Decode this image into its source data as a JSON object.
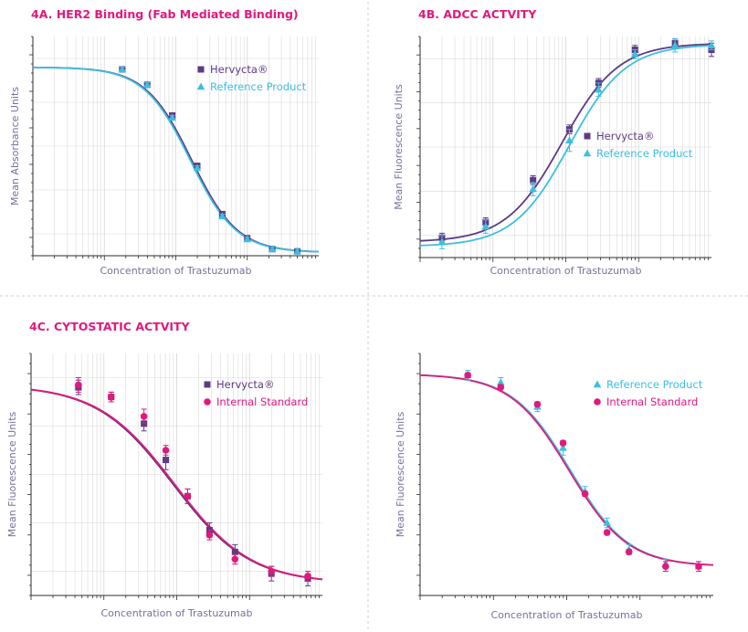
{
  "colors": {
    "title": "#e0197d",
    "hervycta": "#5e3a84",
    "reference": "#3bbfe0",
    "internal": "#e0197d",
    "axis": "#2c2c2c",
    "axis_title": "#7a6f9a",
    "grid": "#d8d8d8",
    "divider": "#cfcfcf"
  },
  "chart_data": [
    {
      "id": "4a",
      "type": "line",
      "title": "4A. HER2 Binding (Fab Mediated Binding)",
      "xlabel": "Concentration of Trastuzumab",
      "ylabel": "Mean Absorbance Units",
      "x_scale": "log",
      "xlim": [
        -2,
        2
      ],
      "ylim": [
        0,
        1
      ],
      "grid": true,
      "legend_position": "top-right",
      "series": [
        {
          "name": "Hervycta®",
          "marker": "square",
          "color": "#5e3a84",
          "x": [
            -0.75,
            -0.4,
            -0.05,
            0.3,
            0.65,
            1.0,
            1.35,
            1.7
          ],
          "y": [
            0.85,
            0.78,
            0.64,
            0.41,
            0.19,
            0.08,
            0.03,
            0.02
          ],
          "err": [
            0.01,
            0.01,
            0.01,
            0.01,
            0.01,
            0.01,
            0.01,
            0.01
          ],
          "curve": {
            "bottom": 0.015,
            "top": 0.86,
            "x50": 0.22,
            "k": 3.1
          }
        },
        {
          "name": "Reference Product",
          "marker": "triangle",
          "color": "#3bbfe0",
          "x": [
            -0.75,
            -0.4,
            -0.05,
            0.3,
            0.65,
            1.0,
            1.35,
            1.7
          ],
          "y": [
            0.85,
            0.78,
            0.63,
            0.4,
            0.18,
            0.075,
            0.03,
            0.02
          ],
          "err": [
            0.01,
            0.01,
            0.01,
            0.01,
            0.01,
            0.01,
            0.01,
            0.01
          ],
          "curve": {
            "bottom": 0.015,
            "top": 0.86,
            "x50": 0.2,
            "k": 3.1
          }
        }
      ]
    },
    {
      "id": "4b",
      "type": "line",
      "title": "4B. ADCC ACTVITY",
      "xlabel": "Concentration of Trastuzumab",
      "ylabel": "Mean Fluorescence Units",
      "x_scale": "log",
      "xlim": [
        -2,
        2
      ],
      "ylim": [
        0,
        1
      ],
      "grid": true,
      "legend_position": "center-right",
      "series": [
        {
          "name": "Hervycta®",
          "marker": "square",
          "color": "#5e3a84",
          "x": [
            -1.7,
            -1.1,
            -0.45,
            0.05,
            0.45,
            0.95,
            1.5,
            2.0
          ],
          "y": [
            0.09,
            0.16,
            0.35,
            0.58,
            0.79,
            0.94,
            0.97,
            0.94
          ],
          "err": [
            0.02,
            0.02,
            0.02,
            0.02,
            0.02,
            0.02,
            0.02,
            0.03
          ],
          "curve": {
            "bottom": 0.07,
            "top": 0.97,
            "x50": -0.05,
            "k": 2.6
          }
        },
        {
          "name": "Reference Product",
          "marker": "triangle",
          "color": "#3bbfe0",
          "x": [
            -1.7,
            -1.1,
            -0.45,
            0.05,
            0.45,
            0.95,
            1.5,
            2.0
          ],
          "y": [
            0.07,
            0.14,
            0.31,
            0.53,
            0.76,
            0.92,
            0.96,
            0.96
          ],
          "err": [
            0.03,
            0.03,
            0.03,
            0.05,
            0.03,
            0.02,
            0.03,
            0.02
          ],
          "curve": {
            "bottom": 0.05,
            "top": 0.965,
            "x50": 0.05,
            "k": 2.6
          }
        }
      ]
    },
    {
      "id": "4c",
      "type": "line",
      "title": "4C. CYTOSTATIC ACTVITY",
      "xlabel": "Concentration of Trastuzumab",
      "ylabel": "Mean Fluorescence Units",
      "x_scale": "log",
      "xlim": [
        -2,
        2
      ],
      "ylim": [
        0,
        1
      ],
      "grid": true,
      "legend_position": "top-right",
      "series": [
        {
          "name": "Hervycta®",
          "marker": "square",
          "color": "#5e3a84",
          "x": [
            -1.35,
            -0.9,
            -0.45,
            -0.15,
            0.15,
            0.45,
            0.8,
            1.3,
            1.8
          ],
          "y": [
            0.86,
            0.82,
            0.71,
            0.56,
            0.41,
            0.27,
            0.18,
            0.09,
            0.07
          ],
          "err": [
            0.03,
            0.02,
            0.03,
            0.04,
            0.03,
            0.03,
            0.03,
            0.03,
            0.03
          ],
          "curve": {
            "bottom": 0.05,
            "top": 0.87,
            "x50": -0.05,
            "k": 1.9
          }
        },
        {
          "name": "Internal Standard",
          "marker": "circle",
          "color": "#e0197d",
          "x": [
            -1.35,
            -0.9,
            -0.45,
            -0.15,
            0.15,
            0.45,
            0.8,
            1.3,
            1.8
          ],
          "y": [
            0.87,
            0.82,
            0.74,
            0.6,
            0.41,
            0.25,
            0.15,
            0.1,
            0.08
          ],
          "err": [
            0.03,
            0.02,
            0.03,
            0.02,
            0.03,
            0.02,
            0.02,
            0.02,
            0.02
          ],
          "curve": {
            "bottom": 0.05,
            "top": 0.87,
            "x50": -0.03,
            "k": 1.9
          }
        }
      ]
    },
    {
      "id": "4d",
      "type": "line",
      "title": "",
      "xlabel": "Concentration of Trastuzumab",
      "ylabel": "Mean Fluorescence Units",
      "x_scale": "log",
      "xlim": [
        -2,
        2
      ],
      "ylim": [
        0,
        1
      ],
      "grid": false,
      "legend_position": "top-right",
      "series": [
        {
          "name": "Reference Product",
          "marker": "triangle",
          "color": "#3bbfe0",
          "x": [
            -1.35,
            -0.9,
            -0.4,
            -0.05,
            0.25,
            0.55,
            0.85,
            1.35,
            1.8
          ],
          "y": [
            0.91,
            0.88,
            0.78,
            0.61,
            0.43,
            0.3,
            0.19,
            0.13,
            0.12
          ],
          "err": [
            0.02,
            0.02,
            0.02,
            0.03,
            0.02,
            0.02,
            0.02,
            0.02,
            0.02
          ],
          "curve": {
            "bottom": 0.12,
            "top": 0.915,
            "x50": 0.05,
            "k": 2.5
          }
        },
        {
          "name": "Internal Standard",
          "marker": "circle",
          "color": "#e0197d",
          "x": [
            -1.35,
            -0.9,
            -0.4,
            -0.05,
            0.25,
            0.55,
            0.85,
            1.35,
            1.8
          ],
          "y": [
            0.91,
            0.86,
            0.79,
            0.63,
            0.42,
            0.26,
            0.18,
            0.12,
            0.12
          ],
          "err": [
            0.01,
            0.01,
            0.01,
            0.01,
            0.01,
            0.01,
            0.01,
            0.02,
            0.02
          ],
          "curve": {
            "bottom": 0.12,
            "top": 0.915,
            "x50": 0.03,
            "k": 2.5
          }
        }
      ]
    }
  ]
}
